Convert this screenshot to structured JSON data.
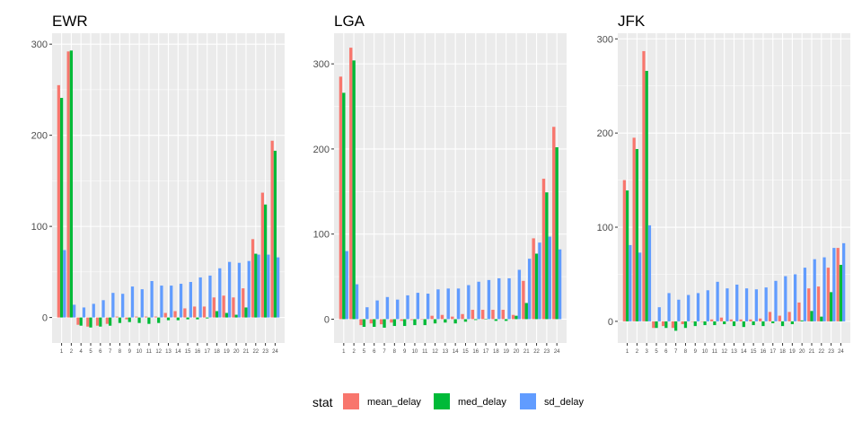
{
  "legend": {
    "title": "stat",
    "items": [
      {
        "label": "mean_delay",
        "color": "#F8766D"
      },
      {
        "label": "med_delay",
        "color": "#00BA38"
      },
      {
        "label": "sd_delay",
        "color": "#619CFF"
      }
    ]
  },
  "chart_data": [
    {
      "type": "bar",
      "title": "EWR",
      "xlabel": "",
      "ylabel": "",
      "ylim": [
        -28,
        312
      ],
      "yticks": [
        0,
        100,
        200,
        300
      ],
      "grid": true,
      "legend_position": "bottom",
      "categories": [
        "1",
        "2",
        "4",
        "5",
        "6",
        "7",
        "8",
        "9",
        "10",
        "11",
        "12",
        "13",
        "14",
        "15",
        "16",
        "17",
        "18",
        "19",
        "20",
        "21",
        "22",
        "23",
        "24"
      ],
      "series": [
        {
          "name": "mean_delay",
          "values": [
            255,
            292,
            -8,
            -10,
            -9,
            -7,
            1,
            -2,
            1,
            1,
            1,
            5,
            7,
            10,
            12,
            12,
            22,
            24,
            22,
            32,
            86,
            137,
            194
          ]
        },
        {
          "name": "med_delay",
          "values": [
            241,
            293,
            -9,
            -11,
            -10,
            -9,
            -6,
            -5,
            -6,
            -7,
            -6,
            -3,
            -3,
            -2,
            -2,
            -1,
            7,
            5,
            3,
            11,
            70,
            124,
            183
          ]
        },
        {
          "name": "sd_delay",
          "values": [
            74,
            14,
            11,
            15,
            19,
            27,
            26,
            34,
            31,
            40,
            35,
            35,
            37,
            39,
            44,
            46,
            54,
            61,
            60,
            62,
            69,
            69,
            66
          ]
        }
      ]
    },
    {
      "type": "bar",
      "title": "LGA",
      "xlabel": "",
      "ylabel": "",
      "ylim": [
        -28,
        336
      ],
      "yticks": [
        0,
        100,
        200,
        300
      ],
      "grid": true,
      "legend_position": "bottom",
      "categories": [
        "1",
        "2",
        "5",
        "6",
        "7",
        "8",
        "9",
        "10",
        "11",
        "12",
        "13",
        "14",
        "15",
        "16",
        "17",
        "18",
        "19",
        "20",
        "21",
        "22",
        "23",
        "24"
      ],
      "series": [
        {
          "name": "mean_delay",
          "values": [
            285,
            319,
            -7,
            -5,
            -6,
            -4,
            -2,
            -1,
            0,
            4,
            5,
            3,
            6,
            11,
            11,
            11,
            11,
            5,
            45,
            95,
            165,
            226
          ]
        },
        {
          "name": "med_delay",
          "values": [
            266,
            304,
            -9,
            -9,
            -10,
            -8,
            -8,
            -7,
            -7,
            -5,
            -4,
            -5,
            -3,
            -1,
            0,
            -2,
            -2,
            4,
            19,
            77,
            149,
            202
          ]
        },
        {
          "name": "sd_delay",
          "values": [
            80,
            41,
            14,
            22,
            26,
            23,
            28,
            31,
            30,
            35,
            36,
            36,
            40,
            44,
            46,
            48,
            48,
            58,
            71,
            90,
            97,
            82
          ]
        }
      ]
    },
    {
      "type": "bar",
      "title": "JFK",
      "xlabel": "",
      "ylabel": "",
      "ylim": [
        -23,
        306
      ],
      "yticks": [
        0,
        100,
        200,
        300
      ],
      "grid": true,
      "legend_position": "bottom",
      "categories": [
        "1",
        "2",
        "3",
        "5",
        "6",
        "7",
        "8",
        "9",
        "10",
        "11",
        "12",
        "13",
        "14",
        "15",
        "16",
        "17",
        "18",
        "19",
        "20",
        "21",
        "22",
        "23",
        "24"
      ],
      "series": [
        {
          "name": "mean_delay",
          "values": [
            150,
            195,
            287,
            -7,
            -5,
            -7,
            -3,
            0,
            0,
            2,
            4,
            2,
            2,
            2,
            3,
            10,
            6,
            10,
            20,
            35,
            37,
            57,
            78
          ]
        },
        {
          "name": "med_delay",
          "values": [
            139,
            183,
            266,
            -7,
            -7,
            -10,
            -7,
            -5,
            -4,
            -4,
            -3,
            -5,
            -6,
            -4,
            -5,
            -2,
            -5,
            -3,
            1,
            11,
            5,
            31,
            60
          ]
        },
        {
          "name": "sd_delay",
          "values": [
            81,
            73,
            102,
            15,
            30,
            23,
            28,
            30,
            33,
            42,
            35,
            39,
            35,
            34,
            36,
            43,
            48,
            50,
            57,
            66,
            68,
            78,
            83
          ]
        }
      ]
    }
  ]
}
